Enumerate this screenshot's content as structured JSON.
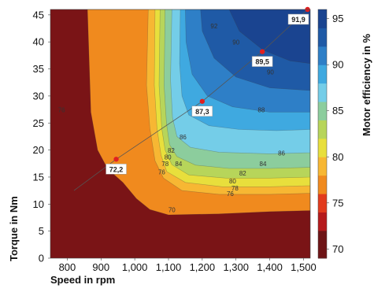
{
  "chart_data": {
    "type": "heatmap",
    "xlabel": "Speed in rpm",
    "ylabel": "Torque in Nm",
    "colorbar_label": "Motor efficiency in %",
    "xlim": [
      750,
      1520
    ],
    "ylim": [
      0,
      46
    ],
    "x_ticks": [
      800,
      900,
      1000,
      1100,
      1200,
      1300,
      1400,
      1500
    ],
    "x_tick_labels": [
      "800",
      "900",
      "1,000",
      "1,100",
      "1,200",
      "1,300",
      "1,400",
      "1,500"
    ],
    "y_ticks": [
      0,
      5,
      10,
      15,
      20,
      25,
      30,
      35,
      40,
      45
    ],
    "y_tick_labels": [
      "0",
      "5",
      "10",
      "15",
      "20",
      "25",
      "30",
      "35",
      "40",
      "45"
    ],
    "colorbar_range": [
      69,
      96
    ],
    "colorbar_ticks": [
      70,
      75,
      80,
      85,
      90,
      95
    ],
    "colorbar_tick_labels": [
      "70",
      "75",
      "80",
      "85",
      "90",
      "95"
    ],
    "colors": {
      "low": "#7a1416",
      "c76": "#f08a1e",
      "c78": "#f7b733",
      "c80": "#e8df3c",
      "c82": "#b7d55a",
      "c84": "#8ccd9d",
      "c86": "#74cde8",
      "c88": "#3fa9e0",
      "c90": "#2e7fc7",
      "c92": "#1f5aa6",
      "c94": "#1a4490",
      "point": "#e02020"
    },
    "contour_labels": [
      {
        "text": "70",
        "x": 1110,
        "y": 8.5
      },
      {
        "text": "76",
        "x": 783,
        "y": 27
      },
      {
        "text": "76",
        "x": 1080,
        "y": 15.5
      },
      {
        "text": "78",
        "x": 1090,
        "y": 17
      },
      {
        "text": "80",
        "x": 1098,
        "y": 18.3
      },
      {
        "text": "82",
        "x": 1108,
        "y": 19.5
      },
      {
        "text": "84",
        "x": 1130,
        "y": 17
      },
      {
        "text": "86",
        "x": 1143,
        "y": 22
      },
      {
        "text": "76",
        "x": 1283,
        "y": 11.5
      },
      {
        "text": "78",
        "x": 1297,
        "y": 12.5
      },
      {
        "text": "80",
        "x": 1290,
        "y": 13.8
      },
      {
        "text": "82",
        "x": 1320,
        "y": 15.3
      },
      {
        "text": "84",
        "x": 1380,
        "y": 17
      },
      {
        "text": "86",
        "x": 1435,
        "y": 19
      },
      {
        "text": "88",
        "x": 1375,
        "y": 27
      },
      {
        "text": "90",
        "x": 1402,
        "y": 34
      },
      {
        "text": "90",
        "x": 1300,
        "y": 39.5
      },
      {
        "text": "92",
        "x": 1235,
        "y": 42.5
      }
    ],
    "operating_points": [
      {
        "x": 945,
        "y": 18.3,
        "label": "72,2"
      },
      {
        "x": 1200,
        "y": 29.0,
        "label": "87,3"
      },
      {
        "x": 1378,
        "y": 38.2,
        "label": "89,5"
      },
      {
        "x": 1512,
        "y": 46.0,
        "label": "91,9"
      }
    ]
  }
}
